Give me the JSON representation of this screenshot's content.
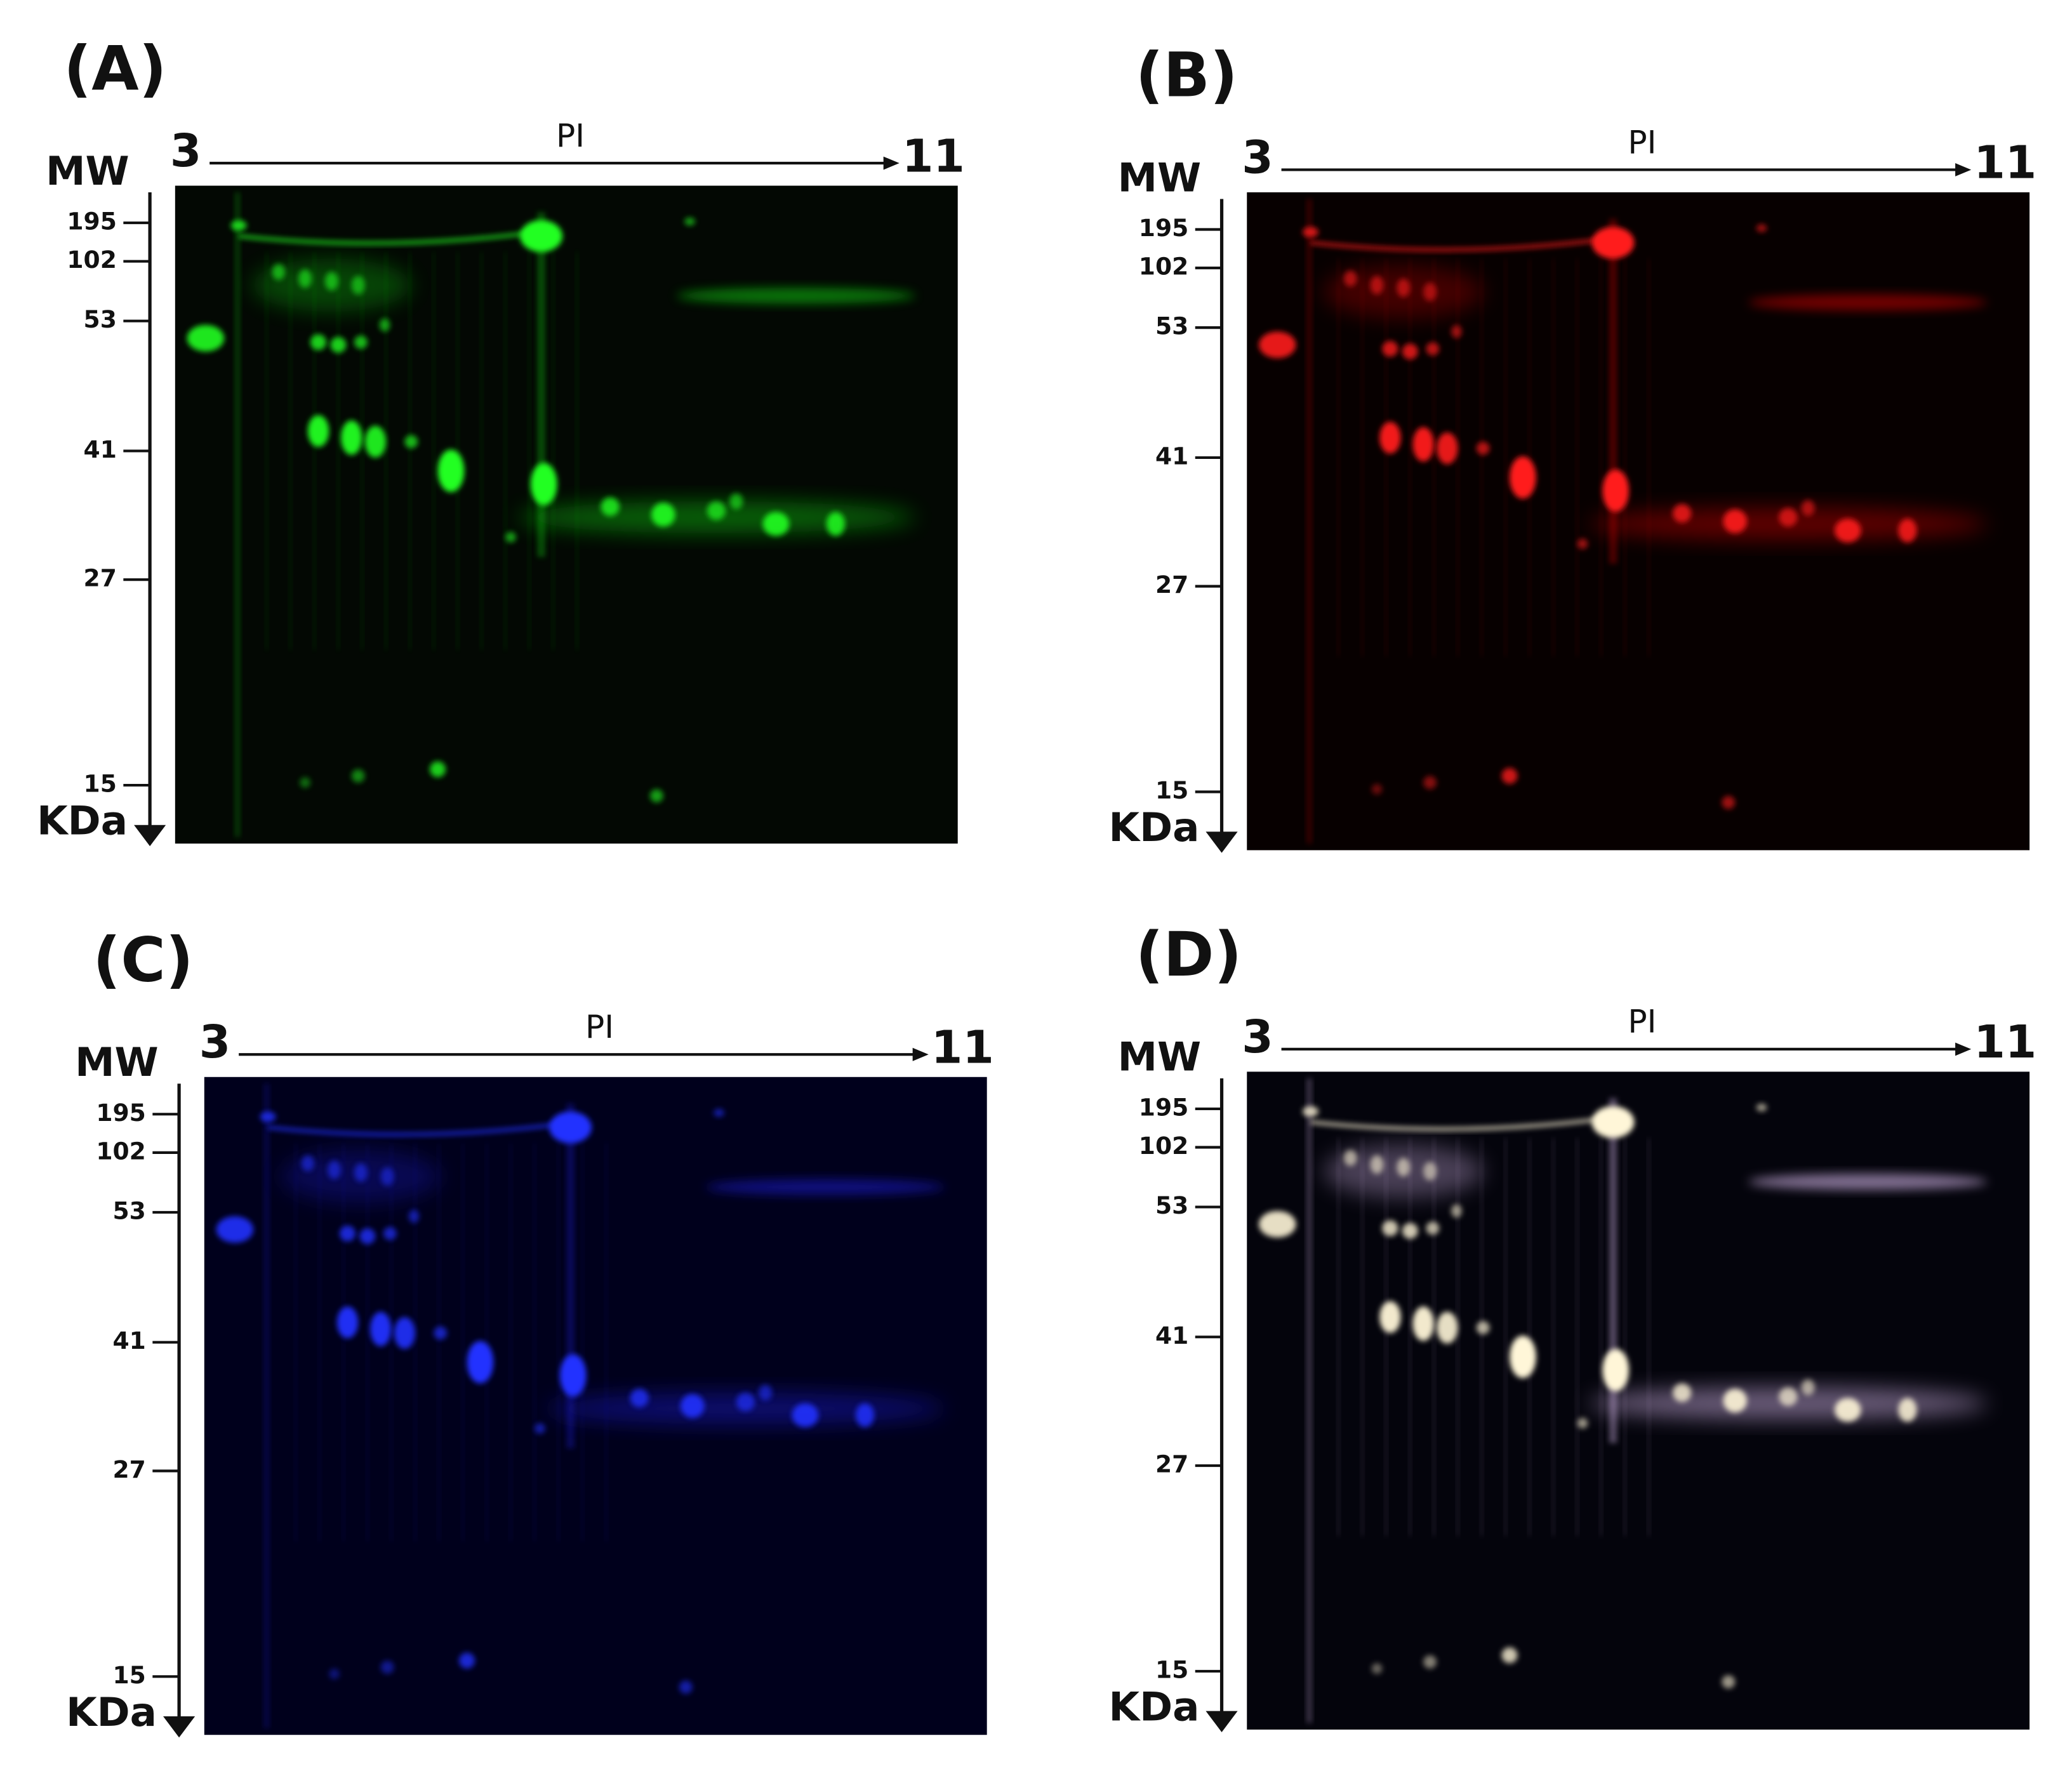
{
  "panels": [
    {
      "label": "(A)",
      "pi_label": "PI",
      "pi_start": "3",
      "pi_end": "11",
      "mw_label": "MW",
      "unit_label": "KDa",
      "mw_ticks": [
        "195",
        "102",
        "53",
        "41",
        "27",
        "15"
      ]
    },
    {
      "label": "(B)",
      "pi_label": "PI",
      "pi_start": "3",
      "pi_end": "11",
      "mw_label": "MW",
      "unit_label": "KDa",
      "mw_ticks": [
        "195",
        "102",
        "53",
        "41",
        "27",
        "15"
      ]
    },
    {
      "label": "(C)",
      "pi_label": "PI",
      "pi_start": "3",
      "pi_end": "11",
      "mw_label": "MW",
      "unit_label": "KDa",
      "mw_ticks": [
        "195",
        "102",
        "53",
        "41",
        "27",
        "15"
      ]
    },
    {
      "label": "(D)",
      "pi_label": "PI",
      "pi_start": "3",
      "pi_end": "11",
      "mw_label": "MW",
      "unit_label": "KDa",
      "mw_ticks": [
        "195",
        "102",
        "53",
        "41",
        "27",
        "15"
      ]
    }
  ]
}
